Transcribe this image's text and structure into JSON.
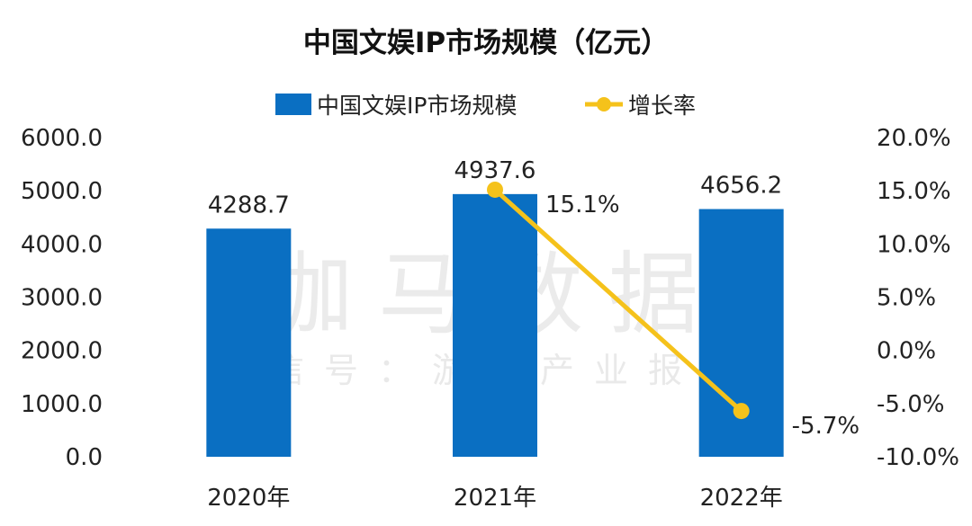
{
  "chart_data": {
    "type": "bar",
    "title": "中国文娱IP市场规模（亿元）",
    "categories": [
      "2020年",
      "2021年",
      "2022年"
    ],
    "series": [
      {
        "name": "中国文娱IP市场规模",
        "type": "bar",
        "axis": "left",
        "color": "#0a6fc2",
        "values": [
          4288.7,
          4937.6,
          4656.2
        ],
        "labels": [
          "4288.7",
          "4937.6",
          "4656.2"
        ]
      },
      {
        "name": "增长率",
        "type": "line",
        "axis": "right",
        "color": "#f5c21b",
        "values": [
          null,
          15.1,
          -5.7
        ],
        "labels": [
          "",
          "15.1%",
          "-5.7%"
        ]
      }
    ],
    "y_left": {
      "min": 0,
      "max": 6000,
      "ticks": [
        "0.0",
        "1000.0",
        "2000.0",
        "3000.0",
        "4000.0",
        "5000.0",
        "6000.0"
      ]
    },
    "y_right": {
      "min": -10,
      "max": 20,
      "ticks": [
        "-10.0%",
        "-5.0%",
        "0.0%",
        "5.0%",
        "10.0%",
        "15.0%",
        "20.0%"
      ]
    },
    "legend_position": "top",
    "grid": false
  },
  "watermark": {
    "line1": "伽马数据",
    "line2": "微信号：游戏产业报告"
  }
}
